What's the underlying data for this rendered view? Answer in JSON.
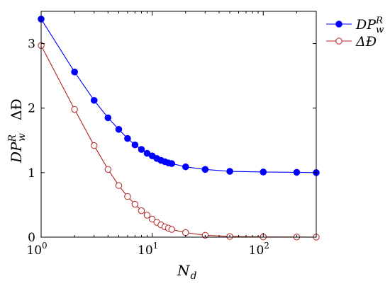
{
  "chart_data": {
    "type": "line",
    "xscale": "log",
    "xlim": [
      1,
      300
    ],
    "ylim": [
      0,
      3.5
    ],
    "xticks": [
      1,
      10,
      100
    ],
    "xtick_labels": [
      {
        "base": "10",
        "exp": "0"
      },
      {
        "base": "10",
        "exp": "1"
      },
      {
        "base": "10",
        "exp": "2"
      }
    ],
    "yticks": [
      0,
      1,
      2,
      3
    ],
    "ytick_labels": [
      "0",
      "1",
      "2",
      "3"
    ],
    "xlabel": {
      "main": "N",
      "sub": "d"
    },
    "ylabel": {
      "main": "DP",
      "sub": "w",
      "sup": "R",
      "second": "ΔĐ"
    },
    "grid": false,
    "legend_position": "outside-top-right",
    "series": [
      {
        "name": {
          "main": "DP",
          "sub": "w",
          "sup": "R"
        },
        "color": "#0000ff",
        "marker": "filled-circle",
        "x": [
          1,
          2,
          3,
          4,
          5,
          6,
          7,
          8,
          9,
          10,
          11,
          12,
          13,
          14,
          15,
          20,
          30,
          50,
          100,
          200,
          300
        ],
        "y": [
          3.38,
          2.56,
          2.12,
          1.85,
          1.67,
          1.53,
          1.43,
          1.36,
          1.3,
          1.26,
          1.22,
          1.19,
          1.17,
          1.15,
          1.14,
          1.09,
          1.05,
          1.02,
          1.01,
          1.005,
          1.0
        ]
      },
      {
        "name": {
          "main": "ΔĐ"
        },
        "color": "#b22222",
        "marker": "open-circle",
        "x": [
          1,
          2,
          3,
          4,
          5,
          6,
          7,
          8,
          9,
          10,
          11,
          12,
          13,
          14,
          15,
          20,
          30,
          50,
          100,
          200,
          300
        ],
        "y": [
          2.97,
          1.98,
          1.42,
          1.05,
          0.8,
          0.63,
          0.51,
          0.41,
          0.34,
          0.28,
          0.23,
          0.19,
          0.16,
          0.14,
          0.12,
          0.07,
          0.03,
          0.01,
          0.004,
          0.002,
          0.001
        ]
      }
    ]
  }
}
